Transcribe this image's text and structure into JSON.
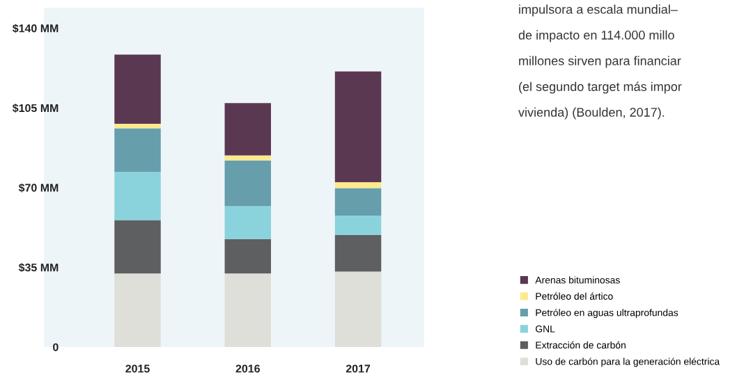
{
  "chart_data": {
    "type": "bar",
    "stacked": true,
    "categories": [
      "2015",
      "2016",
      "2017"
    ],
    "series": [
      {
        "name": "Uso de carbón para la generación eléctrica",
        "color": "#dfdfd9",
        "values": [
          32.3,
          32.3,
          33.1
        ]
      },
      {
        "name": "Extracción de carbón",
        "color": "#5e5f61",
        "values": [
          23.4,
          15.1,
          16.1
        ]
      },
      {
        "name": "GNL",
        "color": "#8ad3dc",
        "values": [
          21.2,
          14.4,
          8.5
        ]
      },
      {
        "name": "Petróleo en aguas ultraprofundas",
        "color": "#669eac",
        "values": [
          19.1,
          20.1,
          12.1
        ]
      },
      {
        "name": "Petróleo del ártico",
        "color": "#fde98e",
        "values": [
          2.0,
          2.2,
          2.6
        ]
      },
      {
        "name": "Arenas bituminosas",
        "color": "#5b3852",
        "values": [
          30.4,
          23.0,
          48.6
        ]
      }
    ],
    "ylim": [
      0,
      149
    ],
    "yticks": [
      0,
      {
        "value": 35,
        "label": "$35 MM"
      },
      {
        "value": 70,
        "label": "$70 MM"
      },
      {
        "value": 105,
        "label": "$105 MM"
      },
      {
        "value": 140,
        "label": "$140 MM"
      }
    ],
    "legend": "right",
    "annotations": [
      "impulsora a escala mundial–",
      "de impacto en 114.000 millo",
      "millones sirven para financiar",
      "(el segundo target más impor",
      "vivienda) (Boulden, 2017)."
    ]
  }
}
